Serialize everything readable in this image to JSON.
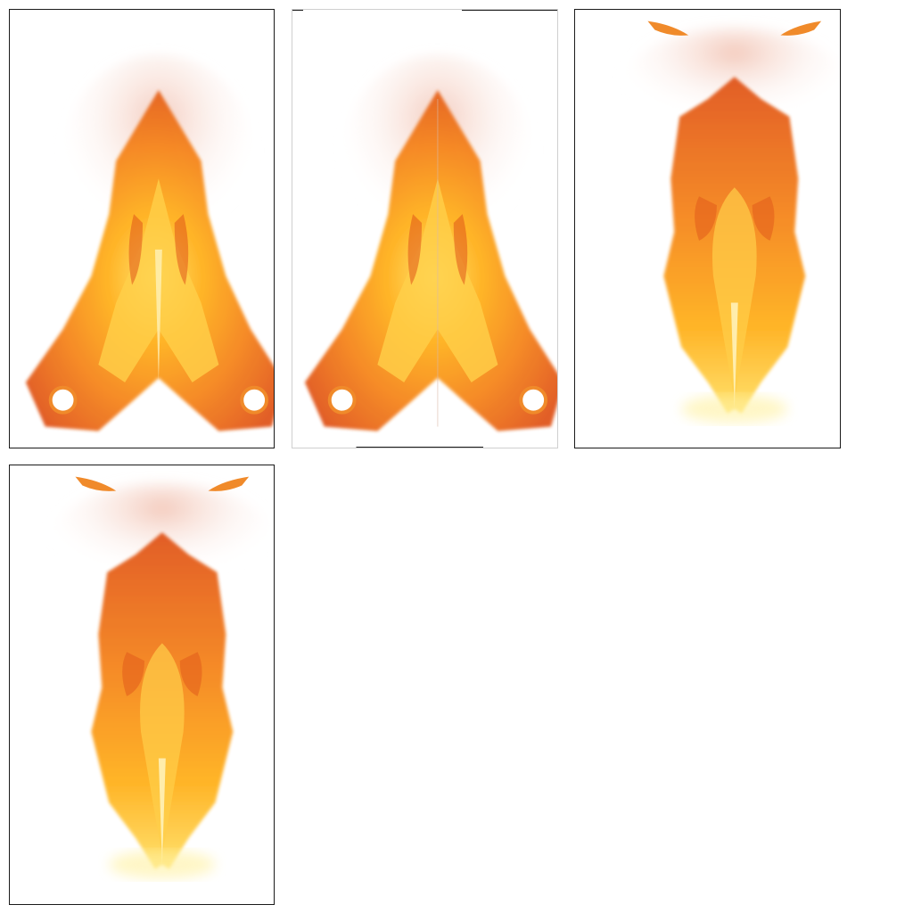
{
  "gallery": {
    "images": [
      {
        "kind": "fire-flame-wide"
      },
      {
        "kind": "fire-flame-wide"
      },
      {
        "kind": "fire-flame-tall"
      },
      {
        "kind": "fire-flame-tall"
      }
    ]
  },
  "palette": {
    "outer": "#e0561a",
    "mid": "#f5841f",
    "bright": "#ffb21e",
    "core": "#ffe066",
    "smoke": "#f3c7b8"
  }
}
